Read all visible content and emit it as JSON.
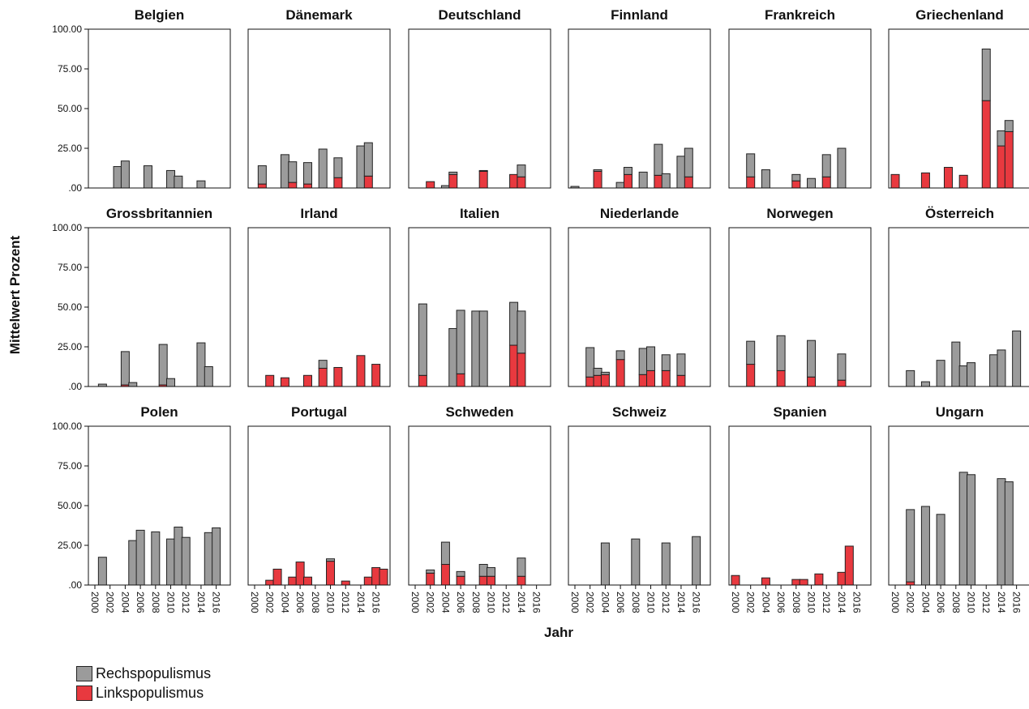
{
  "chart_data": {
    "type": "bar",
    "stacked": true,
    "layout": "small multiples, 3 rows x 6 columns",
    "ylabel": "Mittelwert Prozent",
    "xlabel": "Jahr",
    "ylim": [
      0,
      100
    ],
    "yticks": [
      ".00",
      "25.00",
      "50.00",
      "75.00",
      "100.00"
    ],
    "x_ticks": [
      "2000",
      "2002",
      "2004",
      "2006",
      "2008",
      "2010",
      "2012",
      "2014",
      "2016"
    ],
    "legend": {
      "placement": "bottom-left",
      "entries": [
        {
          "label": "Rechspopulismus",
          "color": "#9b9b9b"
        },
        {
          "label": "Linkspopulismus",
          "color": "#e8393f"
        }
      ]
    },
    "panels": [
      {
        "country": "Belgien",
        "bars": [
          {
            "year": 2003,
            "links": 0,
            "rechts": 13.5
          },
          {
            "year": 2004,
            "links": 0,
            "rechts": 17
          },
          {
            "year": 2007,
            "links": 0,
            "rechts": 14
          },
          {
            "year": 2010,
            "links": 0,
            "rechts": 11
          },
          {
            "year": 2011,
            "links": 0,
            "rechts": 7.5
          },
          {
            "year": 2014,
            "links": 0,
            "rechts": 4.5
          }
        ]
      },
      {
        "country": "Dänemark",
        "bars": [
          {
            "year": 2001,
            "links": 2.5,
            "rechts": 11.5
          },
          {
            "year": 2004,
            "links": 0,
            "rechts": 21
          },
          {
            "year": 2005,
            "links": 3.5,
            "rechts": 13
          },
          {
            "year": 2007,
            "links": 2.5,
            "rechts": 13.5
          },
          {
            "year": 2009,
            "links": 0,
            "rechts": 24.5
          },
          {
            "year": 2011,
            "links": 6.5,
            "rechts": 12.5
          },
          {
            "year": 2014,
            "links": 0,
            "rechts": 26.5
          },
          {
            "year": 2015,
            "links": 7.5,
            "rechts": 21
          }
        ]
      },
      {
        "country": "Deutschland",
        "bars": [
          {
            "year": 2002,
            "links": 4,
            "rechts": 0
          },
          {
            "year": 2004,
            "links": 0,
            "rechts": 1.5
          },
          {
            "year": 2005,
            "links": 8.5,
            "rechts": 1.5
          },
          {
            "year": 2009,
            "links": 10.5,
            "rechts": 0.5
          },
          {
            "year": 2013,
            "links": 8.5,
            "rechts": 0
          },
          {
            "year": 2014,
            "links": 7,
            "rechts": 7.5
          }
        ]
      },
      {
        "country": "Finnland",
        "bars": [
          {
            "year": 2000,
            "links": 0,
            "rechts": 1
          },
          {
            "year": 2003,
            "links": 10.5,
            "rechts": 1
          },
          {
            "year": 2006,
            "links": 0,
            "rechts": 3.5
          },
          {
            "year": 2007,
            "links": 8.5,
            "rechts": 4.5
          },
          {
            "year": 2009,
            "links": 0,
            "rechts": 10
          },
          {
            "year": 2011,
            "links": 8,
            "rechts": 19.5
          },
          {
            "year": 2012,
            "links": 0,
            "rechts": 9
          },
          {
            "year": 2014,
            "links": 0,
            "rechts": 20
          },
          {
            "year": 2015,
            "links": 7,
            "rechts": 18
          }
        ]
      },
      {
        "country": "Frankreich",
        "bars": [
          {
            "year": 2002,
            "links": 7,
            "rechts": 14.5
          },
          {
            "year": 2004,
            "links": 0,
            "rechts": 11.5
          },
          {
            "year": 2008,
            "links": 4.5,
            "rechts": 4
          },
          {
            "year": 2010,
            "links": 0,
            "rechts": 6
          },
          {
            "year": 2012,
            "links": 7,
            "rechts": 14
          },
          {
            "year": 2014,
            "links": 0,
            "rechts": 25
          }
        ]
      },
      {
        "country": "Griechenland",
        "bars": [
          {
            "year": 2000,
            "links": 8.5,
            "rechts": 0
          },
          {
            "year": 2004,
            "links": 9.5,
            "rechts": 0
          },
          {
            "year": 2007,
            "links": 13,
            "rechts": 0
          },
          {
            "year": 2009,
            "links": 8,
            "rechts": 0
          },
          {
            "year": 2012,
            "links": 55,
            "rechts": 32.5
          },
          {
            "year": 2014,
            "links": 26.5,
            "rechts": 9.5
          },
          {
            "year": 2015,
            "links": 35.5,
            "rechts": 7
          }
        ]
      },
      {
        "country": "Grossbritannien",
        "bars": [
          {
            "year": 2001,
            "links": 0,
            "rechts": 1.5
          },
          {
            "year": 2004,
            "links": 1,
            "rechts": 21
          },
          {
            "year": 2005,
            "links": 0,
            "rechts": 2.5
          },
          {
            "year": 2009,
            "links": 1,
            "rechts": 25.5
          },
          {
            "year": 2010,
            "links": 0,
            "rechts": 5
          },
          {
            "year": 2014,
            "links": 0,
            "rechts": 27.5
          },
          {
            "year": 2015,
            "links": 0,
            "rechts": 12.5
          }
        ]
      },
      {
        "country": "Irland",
        "bars": [
          {
            "year": 2002,
            "links": 7,
            "rechts": 0
          },
          {
            "year": 2004,
            "links": 5.5,
            "rechts": 0
          },
          {
            "year": 2007,
            "links": 7,
            "rechts": 0
          },
          {
            "year": 2009,
            "links": 11.5,
            "rechts": 5
          },
          {
            "year": 2011,
            "links": 12,
            "rechts": 0
          },
          {
            "year": 2014,
            "links": 19.5,
            "rechts": 0
          },
          {
            "year": 2016,
            "links": 14,
            "rechts": 0
          }
        ]
      },
      {
        "country": "Italien",
        "bars": [
          {
            "year": 2001,
            "links": 7,
            "rechts": 45
          },
          {
            "year": 2005,
            "links": 0,
            "rechts": 36.5
          },
          {
            "year": 2006,
            "links": 8,
            "rechts": 40
          },
          {
            "year": 2008,
            "links": 0,
            "rechts": 47.5
          },
          {
            "year": 2009,
            "links": 0,
            "rechts": 47.5
          },
          {
            "year": 2013,
            "links": 26,
            "rechts": 27
          },
          {
            "year": 2014,
            "links": 21,
            "rechts": 26.5
          }
        ]
      },
      {
        "country": "Niederlande",
        "bars": [
          {
            "year": 2002,
            "links": 6,
            "rechts": 18.5
          },
          {
            "year": 2003,
            "links": 7,
            "rechts": 4.5
          },
          {
            "year": 2004,
            "links": 7.5,
            "rechts": 1.5
          },
          {
            "year": 2006,
            "links": 17,
            "rechts": 5.5
          },
          {
            "year": 2009,
            "links": 7.5,
            "rechts": 16.5
          },
          {
            "year": 2010,
            "links": 10,
            "rechts": 15
          },
          {
            "year": 2012,
            "links": 10,
            "rechts": 10
          },
          {
            "year": 2014,
            "links": 7,
            "rechts": 13.5
          }
        ]
      },
      {
        "country": "Norwegen",
        "bars": [
          {
            "year": 2002,
            "links": 14,
            "rechts": 14.5
          },
          {
            "year": 2006,
            "links": 10,
            "rechts": 22
          },
          {
            "year": 2010,
            "links": 6,
            "rechts": 23
          },
          {
            "year": 2014,
            "links": 4,
            "rechts": 16.5
          }
        ]
      },
      {
        "country": "Österreich",
        "bars": [
          {
            "year": 2002,
            "links": 0,
            "rechts": 10
          },
          {
            "year": 2004,
            "links": 0,
            "rechts": 3
          },
          {
            "year": 2006,
            "links": 0,
            "rechts": 16.5
          },
          {
            "year": 2008,
            "links": 0,
            "rechts": 28
          },
          {
            "year": 2009,
            "links": 0,
            "rechts": 13
          },
          {
            "year": 2010,
            "links": 0,
            "rechts": 15
          },
          {
            "year": 2013,
            "links": 0,
            "rechts": 20
          },
          {
            "year": 2014,
            "links": 0,
            "rechts": 23
          },
          {
            "year": 2016,
            "links": 0,
            "rechts": 35
          }
        ]
      },
      {
        "country": "Polen",
        "bars": [
          {
            "year": 2001,
            "links": 0,
            "rechts": 17.5
          },
          {
            "year": 2005,
            "links": 0,
            "rechts": 28
          },
          {
            "year": 2006,
            "links": 0,
            "rechts": 34.5
          },
          {
            "year": 2008,
            "links": 0,
            "rechts": 33.5
          },
          {
            "year": 2010,
            "links": 0,
            "rechts": 29
          },
          {
            "year": 2011,
            "links": 0,
            "rechts": 36.5
          },
          {
            "year": 2012,
            "links": 0,
            "rechts": 30
          },
          {
            "year": 2015,
            "links": 0,
            "rechts": 33
          },
          {
            "year": 2016,
            "links": 0,
            "rechts": 36
          }
        ]
      },
      {
        "country": "Portugal",
        "bars": [
          {
            "year": 2002,
            "links": 3,
            "rechts": 0
          },
          {
            "year": 2003,
            "links": 10,
            "rechts": 0
          },
          {
            "year": 2005,
            "links": 5,
            "rechts": 0
          },
          {
            "year": 2006,
            "links": 14.5,
            "rechts": 0
          },
          {
            "year": 2007,
            "links": 5,
            "rechts": 0
          },
          {
            "year": 2010,
            "links": 15,
            "rechts": 1.5
          },
          {
            "year": 2012,
            "links": 2.5,
            "rechts": 0
          },
          {
            "year": 2015,
            "links": 5,
            "rechts": 0
          },
          {
            "year": 2016,
            "links": 11,
            "rechts": 0
          },
          {
            "year": 2017,
            "links": 10,
            "rechts": 0
          }
        ]
      },
      {
        "country": "Schweden",
        "bars": [
          {
            "year": 2002,
            "links": 7.5,
            "rechts": 2
          },
          {
            "year": 2004,
            "links": 13,
            "rechts": 14
          },
          {
            "year": 2006,
            "links": 5.5,
            "rechts": 3
          },
          {
            "year": 2009,
            "links": 5.5,
            "rechts": 7.5
          },
          {
            "year": 2010,
            "links": 5.5,
            "rechts": 5.5
          },
          {
            "year": 2014,
            "links": 5.5,
            "rechts": 11.5
          }
        ]
      },
      {
        "country": "Schweiz",
        "bars": [
          {
            "year": 2004,
            "links": 0,
            "rechts": 26.5
          },
          {
            "year": 2008,
            "links": 0,
            "rechts": 29
          },
          {
            "year": 2012,
            "links": 0,
            "rechts": 26.5
          },
          {
            "year": 2016,
            "links": 0,
            "rechts": 30.5
          }
        ]
      },
      {
        "country": "Spanien",
        "bars": [
          {
            "year": 2000,
            "links": 6,
            "rechts": 0
          },
          {
            "year": 2004,
            "links": 4.5,
            "rechts": 0
          },
          {
            "year": 2008,
            "links": 3.5,
            "rechts": 0
          },
          {
            "year": 2009,
            "links": 3.5,
            "rechts": 0
          },
          {
            "year": 2011,
            "links": 7,
            "rechts": 0
          },
          {
            "year": 2014,
            "links": 8,
            "rechts": 0
          },
          {
            "year": 2015,
            "links": 24.5,
            "rechts": 0
          }
        ]
      },
      {
        "country": "Ungarn",
        "bars": [
          {
            "year": 2002,
            "links": 2,
            "rechts": 45.5
          },
          {
            "year": 2004,
            "links": 0,
            "rechts": 49.5
          },
          {
            "year": 2006,
            "links": 0,
            "rechts": 44.5
          },
          {
            "year": 2009,
            "links": 0,
            "rechts": 71
          },
          {
            "year": 2010,
            "links": 0,
            "rechts": 69.5
          },
          {
            "year": 2014,
            "links": 0,
            "rechts": 67
          },
          {
            "year": 2015,
            "links": 0,
            "rechts": 65
          }
        ]
      }
    ]
  }
}
